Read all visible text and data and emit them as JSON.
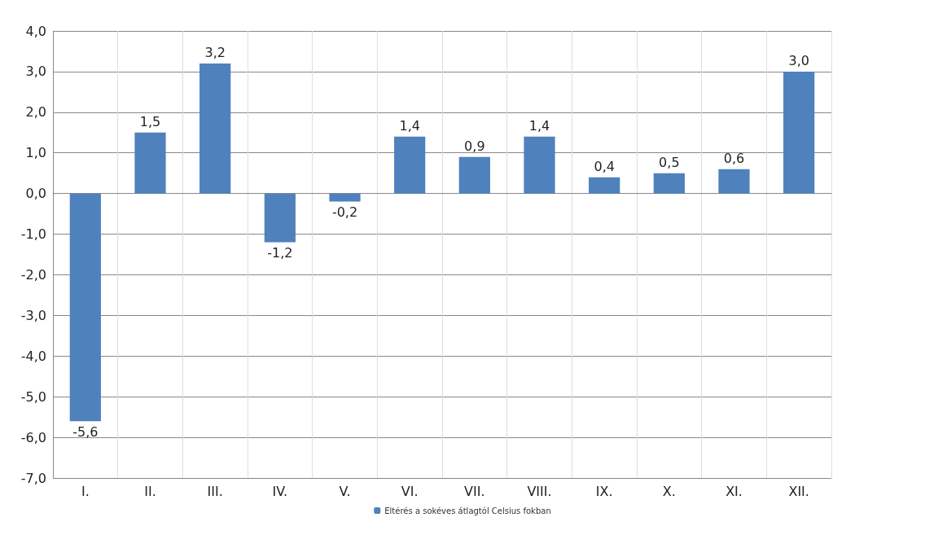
{
  "chart_data": {
    "type": "bar",
    "categories": [
      "I.",
      "II.",
      "III.",
      "IV.",
      "V.",
      "VI.",
      "VII.",
      "VIII.",
      "IX.",
      "X.",
      "XI.",
      "XII."
    ],
    "series": [
      {
        "name": "Eltérés a sokéves átlagtól Celsius fokban",
        "color": "#4f81bd",
        "values": [
          -5.6,
          1.5,
          3.2,
          -1.2,
          -0.2,
          1.4,
          0.9,
          1.4,
          0.4,
          0.5,
          0.6,
          3.0
        ],
        "value_labels": [
          "-5,6",
          "1,5",
          "3,2",
          "-1,2",
          "-0,2",
          "1,4",
          "0,9",
          "1,4",
          "0,4",
          "0,5",
          "0,6",
          "3,0"
        ]
      }
    ],
    "ylim": [
      -7,
      4
    ],
    "yticks": [
      {
        "value": -7,
        "label": "-7,0"
      },
      {
        "value": -6,
        "label": "-6,0"
      },
      {
        "value": -5,
        "label": "-5,0"
      },
      {
        "value": -4,
        "label": "-4,0"
      },
      {
        "value": -3,
        "label": "-3,0"
      },
      {
        "value": -2,
        "label": "-2,0"
      },
      {
        "value": -1,
        "label": "-1,0"
      },
      {
        "value": 0,
        "label": "0,0"
      },
      {
        "value": 1,
        "label": "1,0"
      },
      {
        "value": 2,
        "label": "2,0"
      },
      {
        "value": 3,
        "label": "3,0"
      },
      {
        "value": 4,
        "label": "4,0"
      }
    ],
    "grid": true,
    "legend": "bottom"
  }
}
